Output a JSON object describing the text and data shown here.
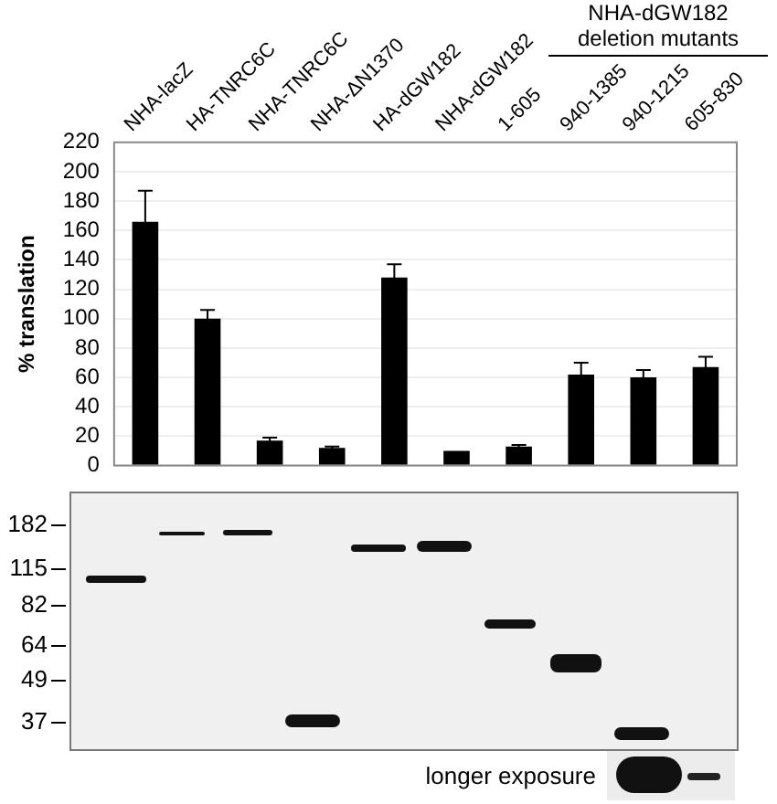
{
  "chart_data": {
    "type": "bar",
    "ylabel": "% translation",
    "categories": [
      "NHA-lacZ",
      "HA-TNRC6C",
      "NHA-TNRC6C",
      "NHA-ΔN1370",
      "HA-dGW182",
      "NHA-dGW182",
      "1-605",
      "940-1385",
      "940-1215",
      "605-830"
    ],
    "values": [
      166,
      100,
      17,
      12,
      128,
      10,
      13,
      62,
      60,
      67
    ],
    "errors": [
      21,
      6,
      2,
      1,
      9,
      null,
      1,
      8,
      5,
      7
    ],
    "color": "#000000",
    "ylim": [
      0,
      220
    ],
    "yticks": [
      0,
      20,
      40,
      60,
      80,
      100,
      120,
      140,
      160,
      180,
      200,
      220
    ],
    "grid": "y",
    "annotations": [
      "NHA-dGW182 deletion mutants",
      "182",
      "115",
      "82",
      "64",
      "49",
      "37",
      "longer exposure"
    ]
  }
}
